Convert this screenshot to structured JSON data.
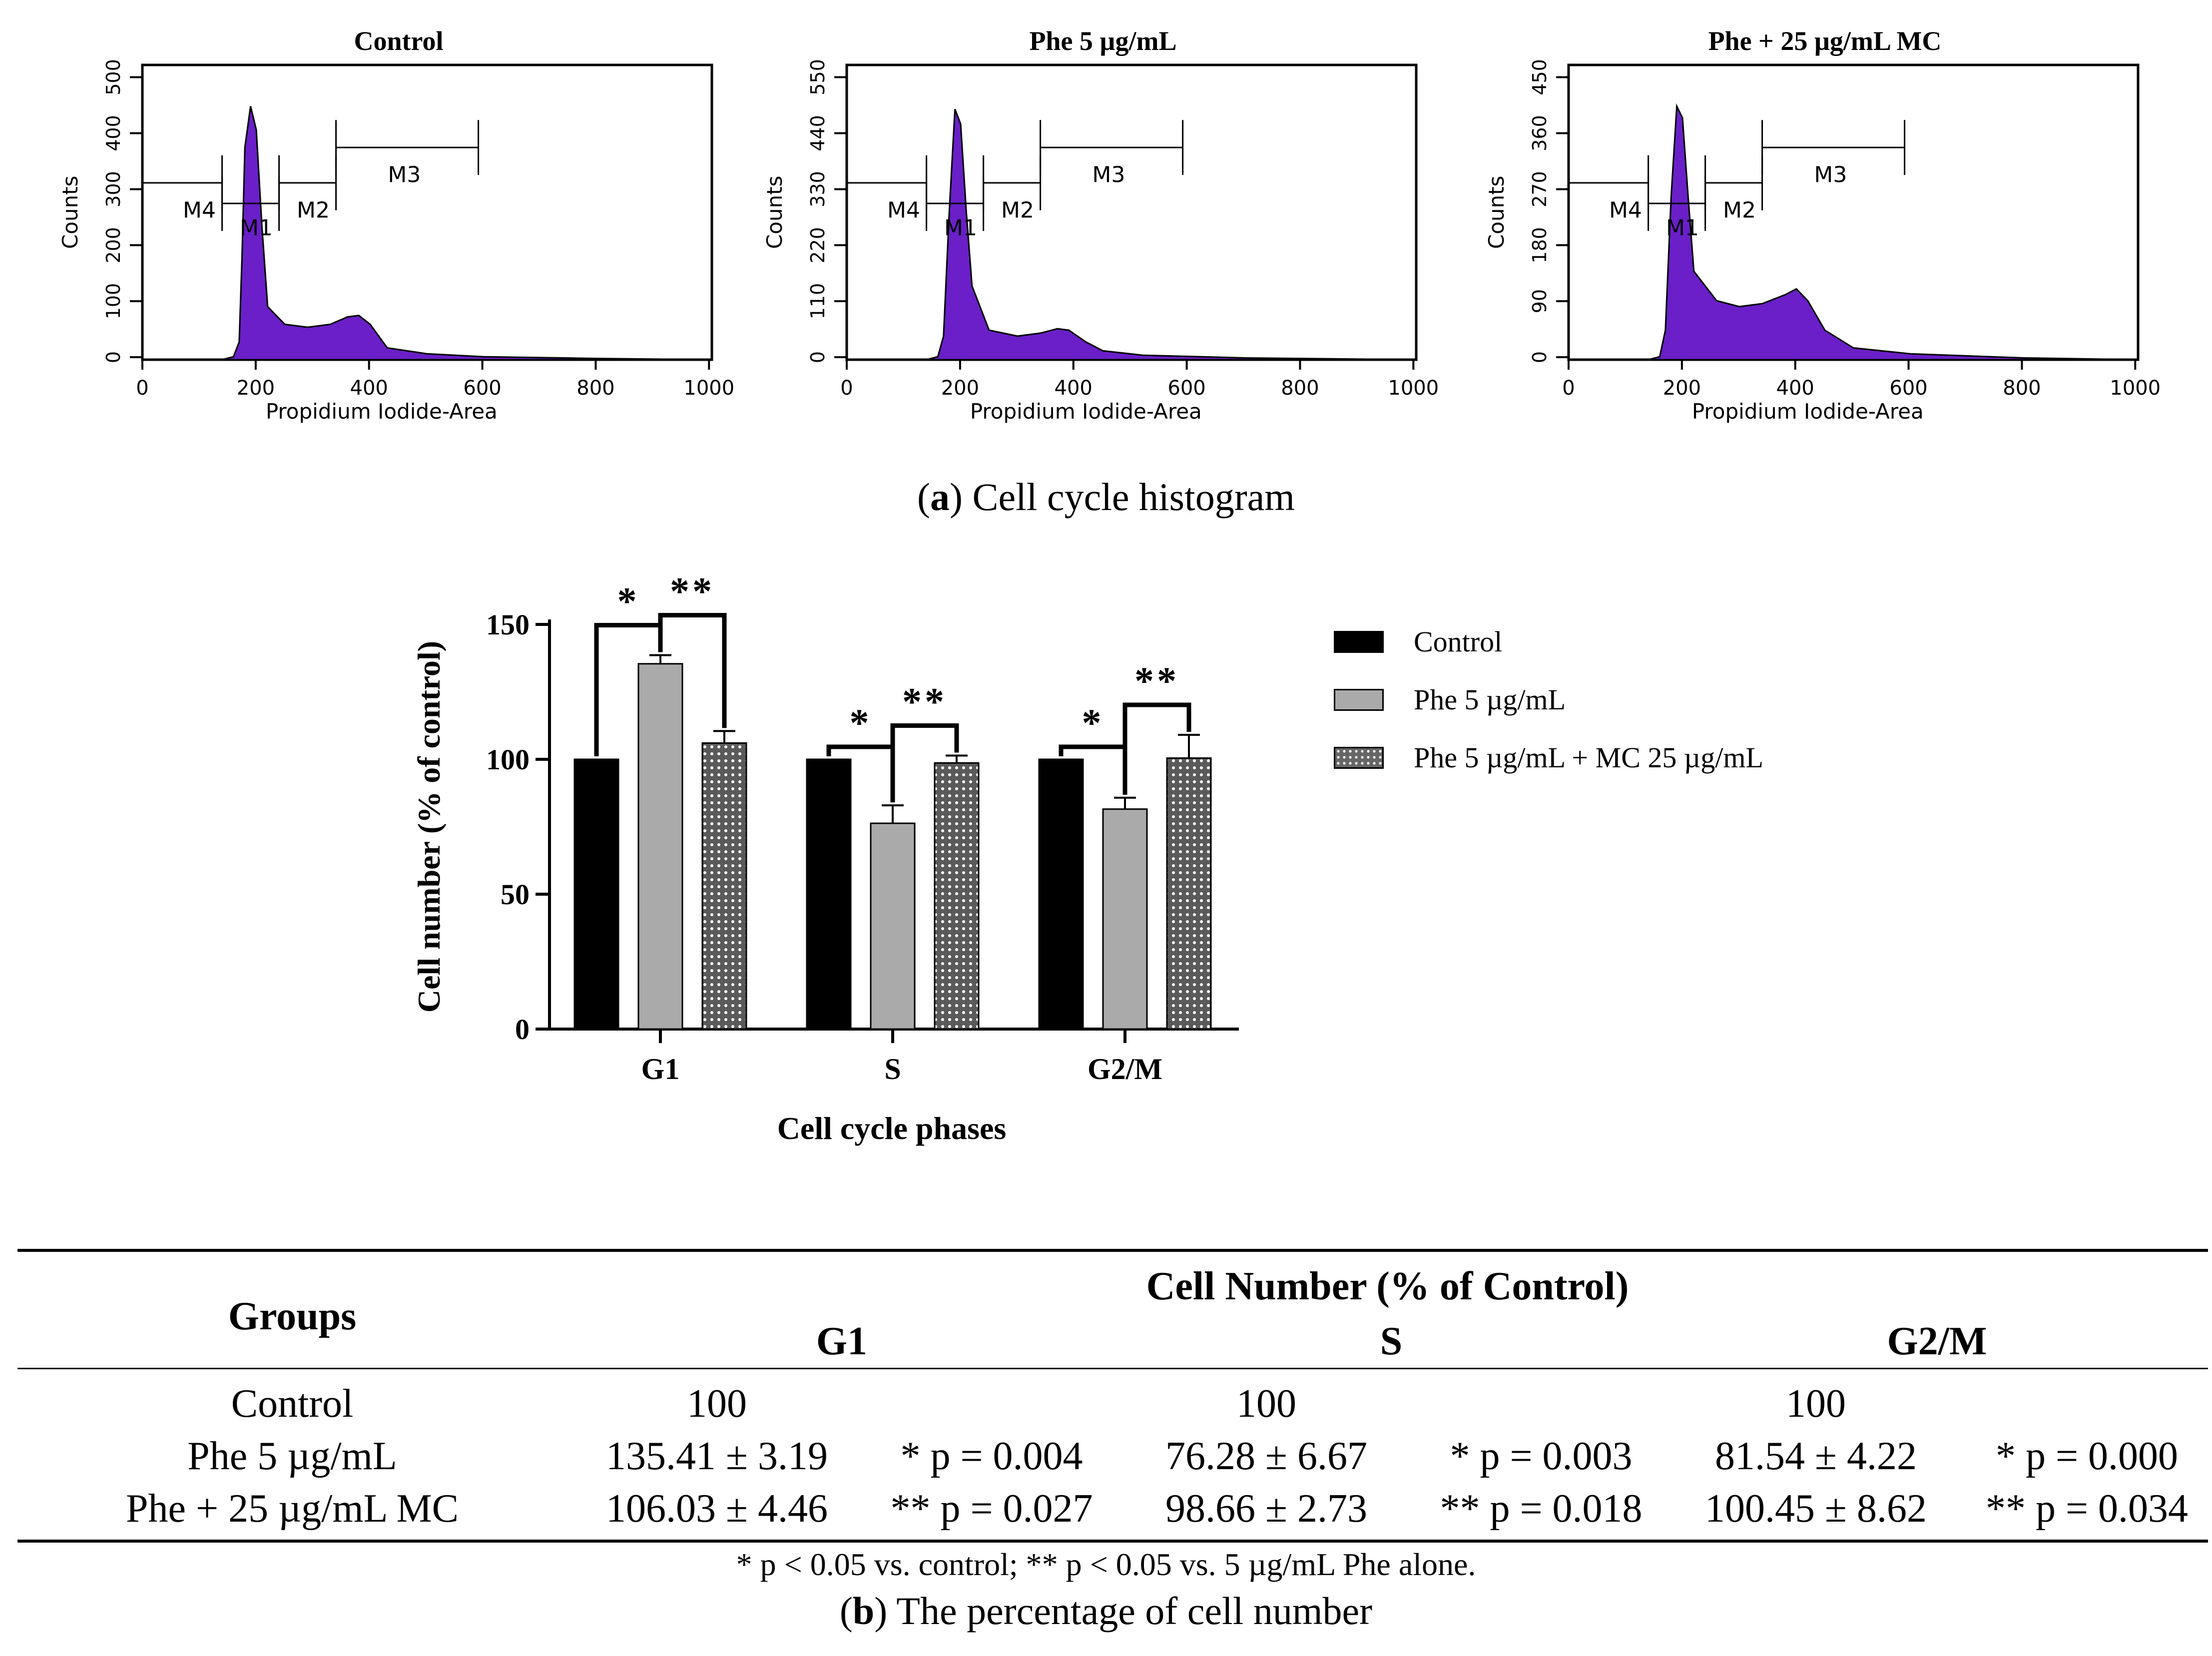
{
  "histograms": [
    {
      "title": "Control",
      "xlabel": "Propidium Iodide-Area",
      "ylabel": "Counts",
      "yticks": [
        "0",
        "100",
        "200",
        "300",
        "400",
        "500"
      ],
      "xticks": [
        "0",
        "200",
        "400",
        "600",
        "800",
        "1000"
      ],
      "markers": [
        "M4",
        "M1",
        "M2",
        "M3"
      ]
    },
    {
      "title": "Phe 5 µg/mL",
      "xlabel": "Propidium Iodide-Area",
      "ylabel": "Counts",
      "yticks": [
        "0",
        "110",
        "220",
        "330",
        "440",
        "550"
      ],
      "xticks": [
        "0",
        "200",
        "400",
        "600",
        "800",
        "1000"
      ],
      "markers": [
        "M4",
        "M1",
        "M2",
        "M3"
      ]
    },
    {
      "title": "Phe + 25 µg/mL MC",
      "xlabel": "Propidium Iodide-Area",
      "ylabel": "Counts",
      "yticks": [
        "0",
        "90",
        "180",
        "270",
        "360",
        "450"
      ],
      "xticks": [
        "0",
        "200",
        "400",
        "600",
        "800",
        "1000"
      ],
      "markers": [
        "M4",
        "M1",
        "M2",
        "M3"
      ]
    }
  ],
  "caption_a": {
    "letter": "a",
    "text": "Cell cycle histogram"
  },
  "chart_data": {
    "type": "bar",
    "title": "",
    "categories": [
      "G1",
      "S",
      "G2/M"
    ],
    "xlabel": "Cell cycle phases",
    "ylabel": "Cell number (% of control)",
    "ylim": [
      0,
      150
    ],
    "yticks": [
      "0",
      "50",
      "100",
      "150"
    ],
    "series": [
      {
        "name": "Control",
        "values": [
          100,
          100,
          100
        ],
        "errors": [
          0,
          0,
          0
        ],
        "fill": "#000000"
      },
      {
        "name": "Phe 5 µg/mL",
        "values": [
          135.41,
          76.28,
          81.54
        ],
        "errors": [
          3.19,
          6.67,
          4.22
        ],
        "fill": "#aaaaaa"
      },
      {
        "name": "Phe 5 µg/mL + MC 25 µg/mL",
        "values": [
          106.03,
          98.66,
          100.45
        ],
        "errors": [
          4.46,
          2.73,
          8.62
        ],
        "fill": "#666666"
      }
    ],
    "significance": {
      "single": "*",
      "double": "**"
    },
    "legend_position": "right"
  },
  "table": {
    "groups_header": "Groups",
    "main_header": "Cell Number (% of Control)",
    "phases": [
      "G1",
      "S",
      "G2/M"
    ],
    "rows": [
      {
        "group": "Control",
        "cells": [
          [
            "100",
            ""
          ],
          [
            "100",
            ""
          ],
          [
            "100",
            ""
          ]
        ]
      },
      {
        "group": "Phe 5 µg/mL",
        "cells": [
          [
            "135.41 ± 3.19",
            "* p = 0.004"
          ],
          [
            "76.28 ± 6.67",
            "* p = 0.003"
          ],
          [
            "81.54 ± 4.22",
            "* p = 0.000"
          ]
        ]
      },
      {
        "group": "Phe + 25 µg/mL MC",
        "cells": [
          [
            "106.03 ± 4.46",
            "** p = 0.027"
          ],
          [
            "98.66 ± 2.73",
            "** p = 0.018"
          ],
          [
            "100.45 ± 8.62",
            "** p = 0.034"
          ]
        ]
      }
    ],
    "footnote": "* p < 0.05 vs. control; ** p < 0.05 vs. 5 µg/mL Phe alone."
  },
  "caption_b": {
    "letter": "b",
    "text": "The percentage of cell number"
  }
}
